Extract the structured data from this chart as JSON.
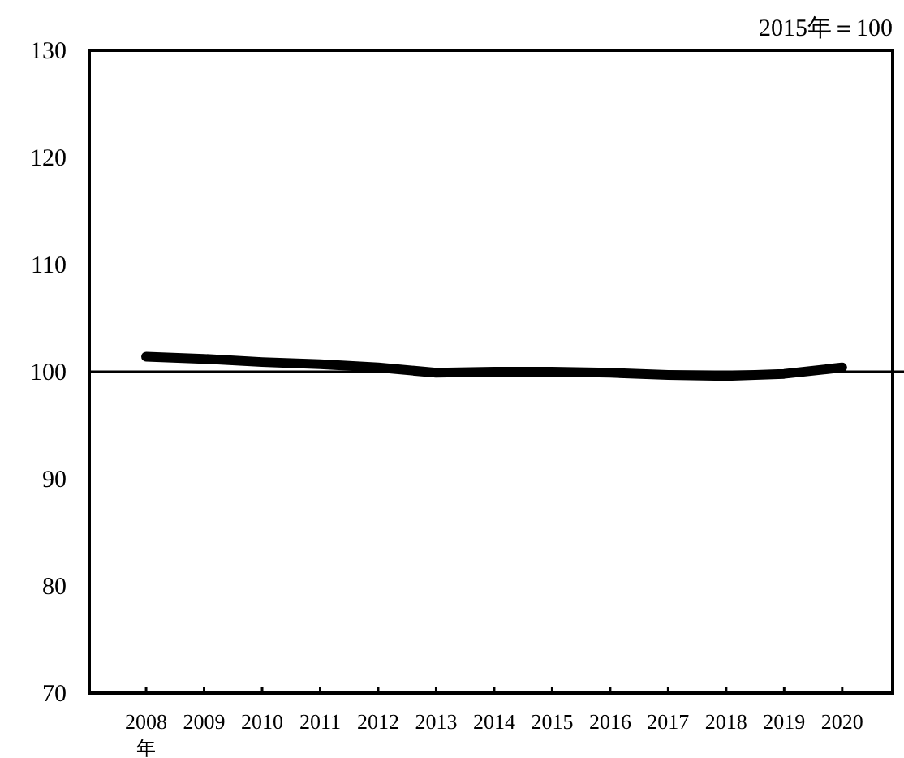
{
  "chart_data": {
    "type": "line",
    "categories": [
      "2008",
      "2009",
      "2010",
      "2011",
      "2012",
      "2013",
      "2014",
      "2015",
      "2016",
      "2017",
      "2018",
      "2019",
      "2020"
    ],
    "xlabel": "年",
    "series": [
      {
        "color": "#000000",
        "values": [
          101.4,
          101.2,
          100.9,
          100.7,
          100.4,
          99.9,
          100.0,
          100.0,
          99.9,
          99.7,
          99.6,
          99.8,
          100.4
        ]
      }
    ],
    "ylim": [
      70,
      130
    ],
    "yticks": [
      70,
      80,
      90,
      100,
      110,
      120,
      130
    ],
    "ref_lines": [
      {
        "axis": "y",
        "value": 100,
        "color": "#000000"
      }
    ],
    "annotations": [
      "2015年＝100"
    ],
    "grid": false,
    "marker": "none",
    "line_style": "solid"
  }
}
